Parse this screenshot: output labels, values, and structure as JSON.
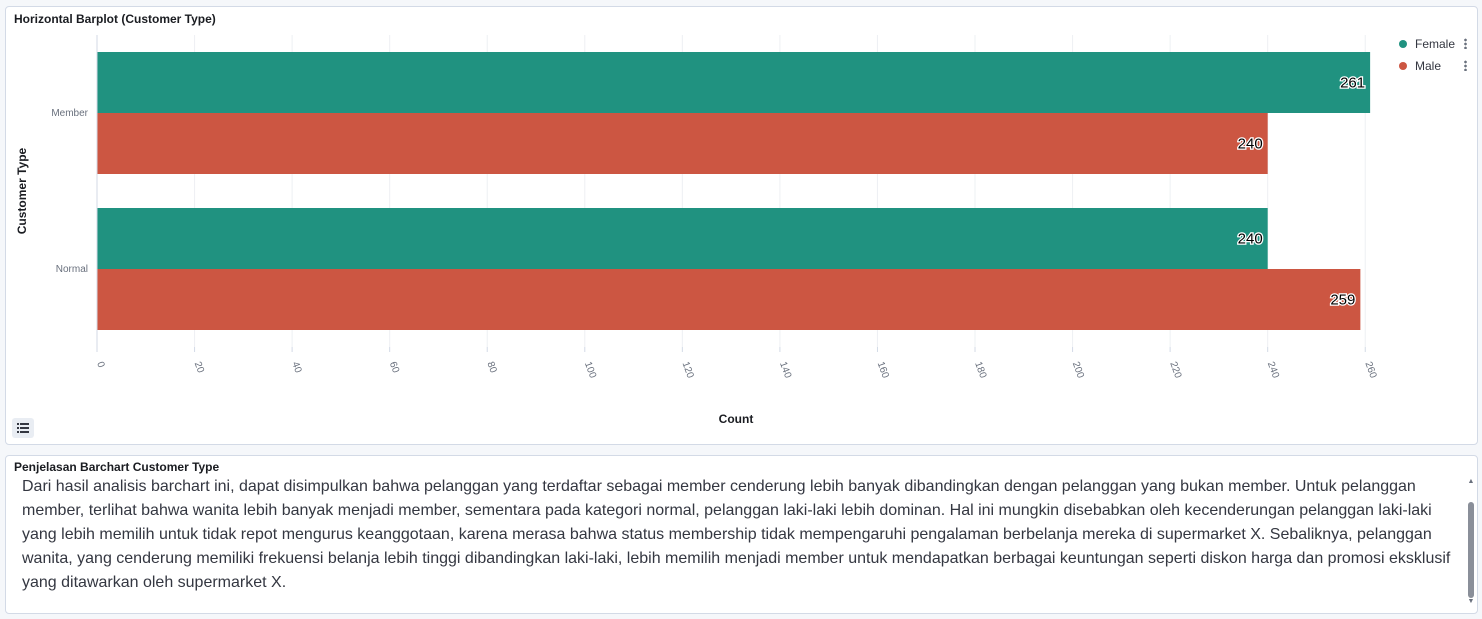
{
  "chart_panel": {
    "title": "Horizontal Barplot (Customer Type)"
  },
  "chart_data": {
    "type": "bar",
    "orientation": "horizontal",
    "categories": [
      "Member",
      "Normal"
    ],
    "series": [
      {
        "name": "Female",
        "values": [
          261,
          240
        ],
        "color": "#209280"
      },
      {
        "name": "Male",
        "values": [
          240,
          259
        ],
        "color": "#cc5642"
      }
    ],
    "xlabel": "Count",
    "ylabel": "Customer Type",
    "xlim": [
      0,
      262
    ],
    "x_ticks": [
      0,
      20,
      40,
      60,
      80,
      100,
      120,
      140,
      160,
      180,
      200,
      220,
      240,
      260
    ],
    "grid": true,
    "legend_position": "top-right",
    "data_labels": true
  },
  "legend": {
    "items": [
      {
        "label": "Female",
        "color": "#209280",
        "icon": "dot"
      },
      {
        "label": "Male",
        "color": "#cc5642",
        "icon": "dot"
      }
    ],
    "more_icon": "vertical-dots-icon"
  },
  "tooltip_toggle": {
    "icon": "list-icon"
  },
  "text_panel": {
    "title": "Penjelasan Barchart Customer Type",
    "body": "Dari hasil analisis barchart ini, dapat disimpulkan bahwa pelanggan yang terdaftar sebagai member cenderung lebih banyak dibandingkan dengan pelanggan yang bukan member. Untuk pelanggan member, terlihat bahwa wanita lebih banyak menjadi member, sementara pada kategori normal, pelanggan laki-laki lebih dominan. Hal ini mungkin disebabkan oleh kecenderungan pelanggan laki-laki yang lebih memilih untuk tidak repot mengurus keanggotaan, karena merasa bahwa status membership tidak mempengaruhi pengalaman berbelanja mereka di supermarket X. Sebaliknya, pelanggan wanita, yang cenderung memiliki frekuensi belanja lebih tinggi dibandingkan laki-laki, lebih memilih menjadi member untuk mendapatkan berbagai keuntungan seperti diskon harga dan promosi eksklusif yang ditawarkan oleh supermarket X."
  }
}
